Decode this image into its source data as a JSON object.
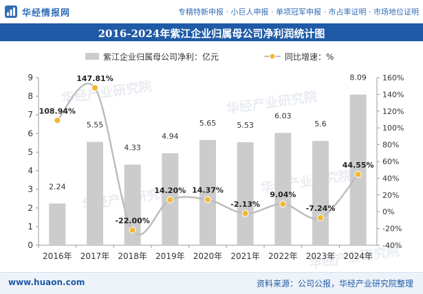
{
  "header": {
    "brand": "华经情报网",
    "tags": "专精特新申报 · 小巨人申报 · 单项冠军申报 · 市占率证明 · 市场地位证明"
  },
  "title": "2016-2024年紫江企业归属母公司净利润统计图",
  "footer": {
    "site": "www.huaon.com",
    "source": "资料来源：公司公报，华经产业研究院整理"
  },
  "watermark": "华经产业研究院",
  "colors": {
    "title_bg": "#1f5aa6",
    "bar": "#cccccc",
    "line": "#bdbdbd",
    "marker": "#f2b833",
    "brand": "#2f6db5"
  },
  "chart_data": {
    "type": "bar",
    "categories": [
      "2016年",
      "2017年",
      "2018年",
      "2019年",
      "2020年",
      "2021年",
      "2022年",
      "2023年",
      "2024年"
    ],
    "series": [
      {
        "name": "紫江企业归属母公司净利：亿元",
        "type": "bar",
        "axis": "left",
        "values": [
          2.24,
          5.55,
          4.33,
          4.94,
          5.65,
          5.53,
          6.03,
          5.6,
          8.09
        ],
        "labels": [
          "2.24",
          "5.55",
          "4.33",
          "4.94",
          "5.65",
          "5.53",
          "6.03",
          "5.6",
          "8.09"
        ]
      },
      {
        "name": "同比增速：%",
        "type": "line",
        "axis": "right",
        "values": [
          108.94,
          147.81,
          -22.0,
          14.2,
          14.37,
          -2.13,
          9.04,
          -7.24,
          44.55
        ],
        "labels": [
          "108.94%",
          "147.81%",
          "-22.00%",
          "14.20%",
          "14.37%",
          "-2.13%",
          "9.04%",
          "-7.24%",
          "44.55%"
        ]
      }
    ],
    "y_left": {
      "min": 0,
      "max": 9,
      "ticks": [
        "0",
        "1",
        "2",
        "3",
        "4",
        "5",
        "6",
        "7",
        "8",
        "9"
      ]
    },
    "y_right": {
      "min": -40,
      "max": 160,
      "ticks": [
        "-40%",
        "-20%",
        "0%",
        "20%",
        "40%",
        "60%",
        "80%",
        "100%",
        "120%",
        "140%",
        "160%"
      ]
    },
    "legend_position": "top-center"
  }
}
